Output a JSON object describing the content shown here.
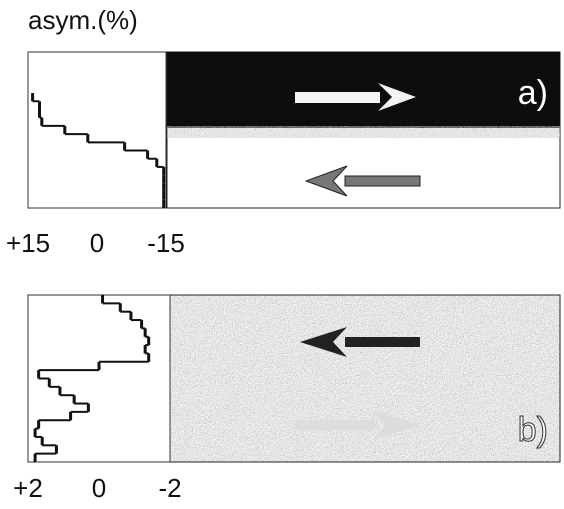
{
  "chart_data": [
    {
      "type": "step-profile",
      "title": "asym.(%)",
      "label": "a)",
      "xlim": [
        15,
        -15
      ],
      "xticks": [
        {
          "value": 15,
          "label": "+15"
        },
        0,
        -15
      ],
      "categories": [
        null,
        null,
        null,
        null,
        null,
        null,
        null,
        null,
        null,
        null,
        null,
        null,
        null,
        null,
        null,
        null,
        null,
        null,
        null
      ],
      "values": [
        null,
        null,
        null,
        null,
        null,
        14,
        12.5,
        12.5,
        12,
        7,
        2,
        -6,
        -11,
        -13,
        -14.5,
        -14.5,
        -14.5,
        -14.5,
        -14.5
      ],
      "color": "#111111"
    },
    {
      "type": "step-profile",
      "label": "b)",
      "xlim": [
        2,
        -2
      ],
      "xticks": [
        {
          "value": 2,
          "label": "+2"
        },
        0,
        -2
      ],
      "categories": [
        null,
        null,
        null,
        null,
        null,
        null,
        null,
        null,
        null,
        null,
        null,
        null,
        null,
        null,
        null,
        null,
        null,
        null,
        null,
        null
      ],
      "values": [
        -0.1,
        -0.6,
        -0.9,
        -1.2,
        -1.3,
        -1.4,
        -1.3,
        -1.4,
        0,
        1.7,
        1.4,
        1.1,
        0.7,
        0.3,
        0.8,
        1.7,
        1.8,
        1.6,
        1.2,
        1.8
      ],
      "color": "#111111"
    }
  ]
}
